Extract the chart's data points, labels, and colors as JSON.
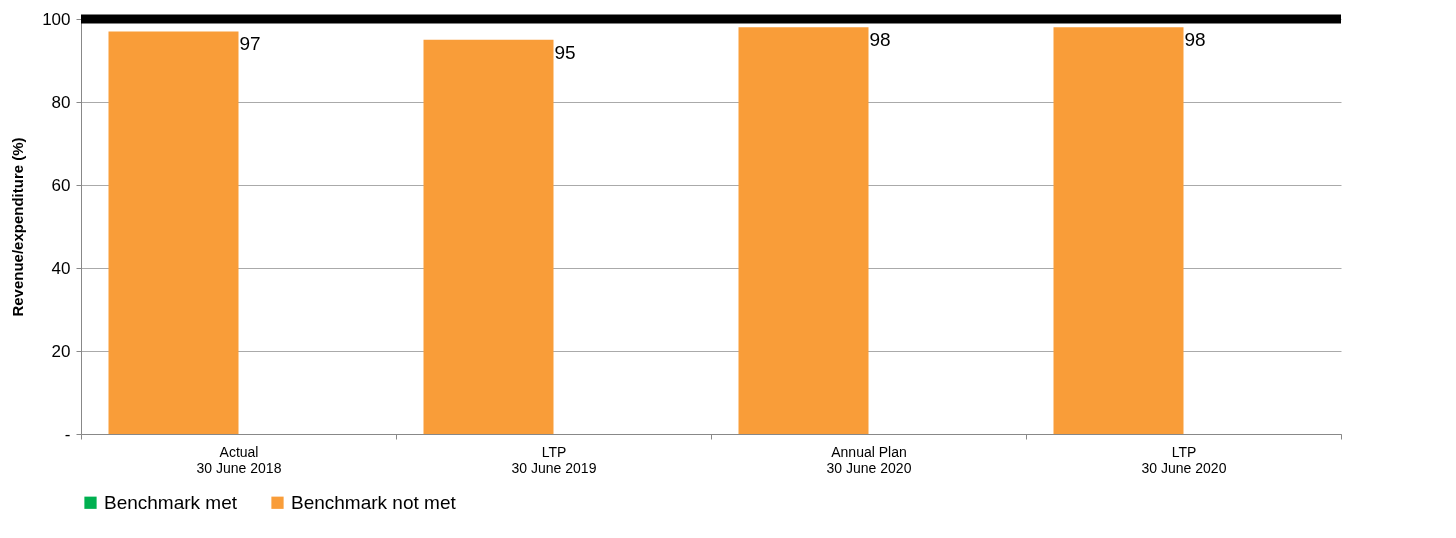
{
  "chart_data": {
    "type": "bar",
    "ylabel": "Revenue/expenditure (%)",
    "categories": [
      "Actual\n30 June 2018",
      "LTP\n30 June 2019",
      "Annual Plan\n30 June 2020",
      "LTP\n30 June 2020"
    ],
    "series": [
      {
        "name": "Benchmark met",
        "color": "#00b050",
        "values": [
          null,
          null,
          null,
          null
        ]
      },
      {
        "name": "Benchmark not met",
        "color": "#f99d39",
        "values": [
          97,
          95,
          98,
          98
        ]
      }
    ],
    "ylim": [
      0,
      100
    ],
    "yticks": [
      {
        "value": 0,
        "label": "-"
      },
      20,
      40,
      60,
      80,
      100
    ],
    "ref_lines": [
      {
        "axis": "y",
        "value": 100,
        "color": "#000000"
      }
    ],
    "data_labels": true,
    "grid": "y",
    "legend": "bottom"
  }
}
